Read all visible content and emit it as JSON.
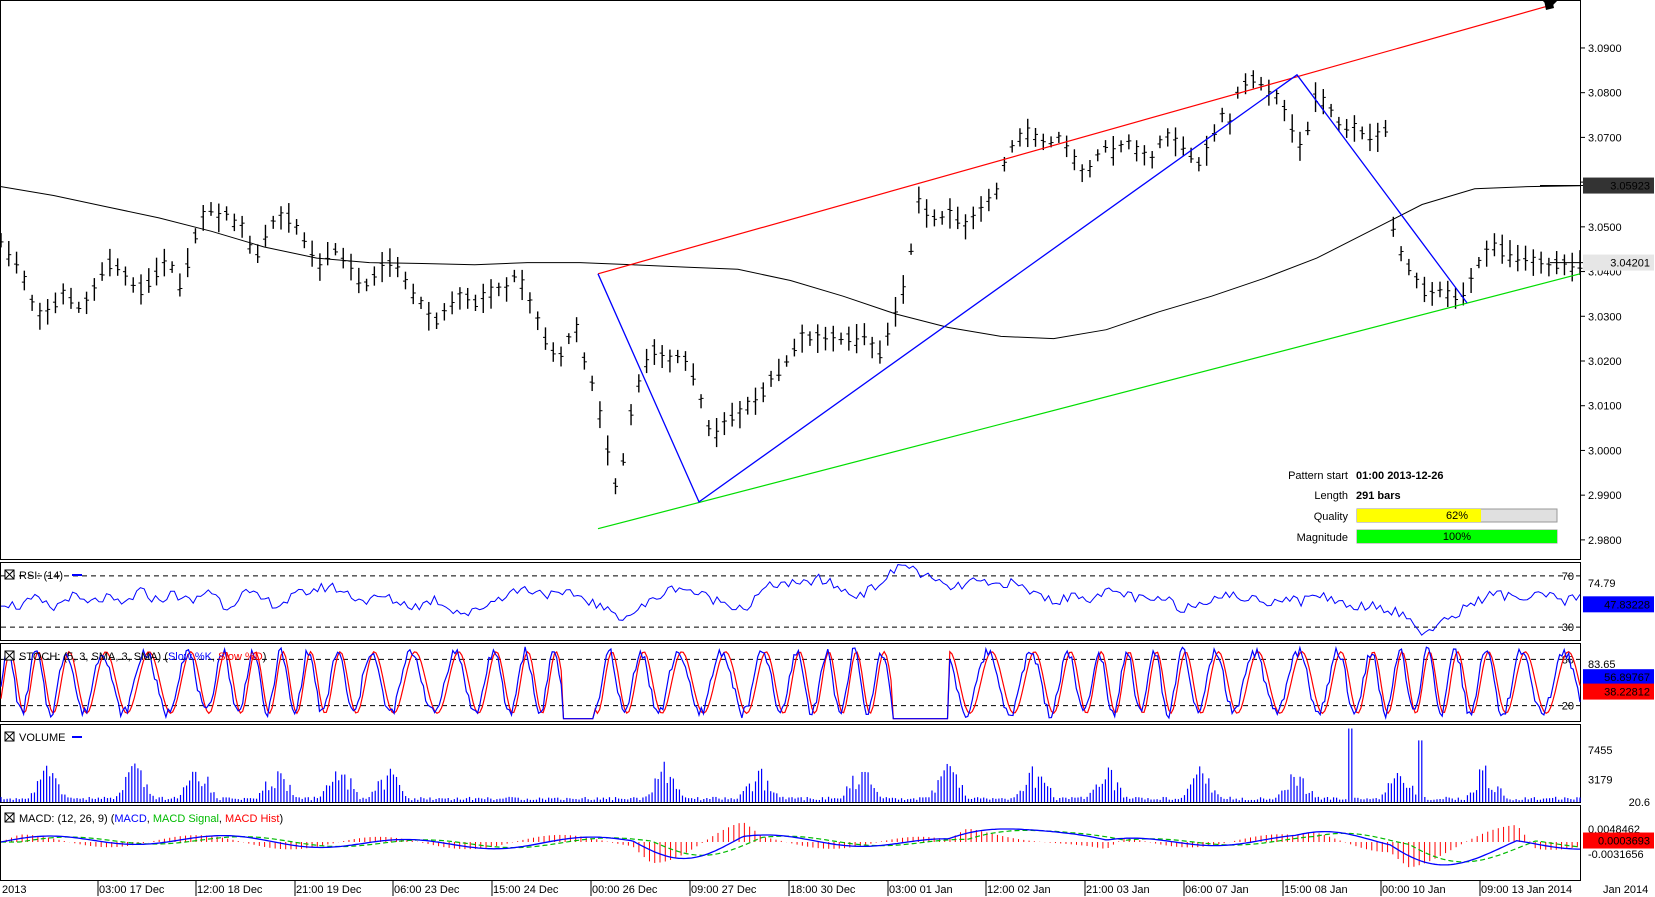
{
  "chart_data": {
    "type": "line",
    "main": {
      "y_ticks": [
        "3.0900",
        "3.0800",
        "3.0700",
        "3.0600",
        "3.0500",
        "3.0400",
        "3.0300",
        "3.0200",
        "3.0100",
        "3.0000",
        "2.9900",
        "2.9800"
      ],
      "ylim": [
        2.9755,
        3.1005
      ],
      "ma_label": "3.05923",
      "price_label": "3.04201",
      "ma_value": 3.05923,
      "price_value": 3.04201,
      "price_bars": [
        3.047,
        3.044,
        3.042,
        3.038,
        3.033,
        3.03,
        3.031,
        3.033,
        3.035,
        3.034,
        3.032,
        3.033,
        3.036,
        3.04,
        3.042,
        3.041,
        3.039,
        3.037,
        3.036,
        3.038,
        3.04,
        3.042,
        3.041,
        3.037,
        3.042,
        3.048,
        3.052,
        3.054,
        3.052,
        3.053,
        3.051,
        3.05,
        3.046,
        3.044,
        3.048,
        3.051,
        3.052,
        3.052,
        3.05,
        3.047,
        3.044,
        3.041,
        3.044,
        3.045,
        3.043,
        3.041,
        3.038,
        3.037,
        3.039,
        3.041,
        3.042,
        3.041,
        3.038,
        3.035,
        3.033,
        3.03,
        3.029,
        3.031,
        3.033,
        3.034,
        3.034,
        3.033,
        3.034,
        3.035,
        3.036,
        3.036,
        3.039,
        3.037,
        3.033,
        3.029,
        3.025,
        3.022,
        3.021,
        3.025,
        3.027,
        3.02,
        3.015,
        3.008,
        3.0,
        2.992,
        2.998,
        3.008,
        3.015,
        3.02,
        3.022,
        3.021,
        3.02,
        3.021,
        3.02,
        3.017,
        3.011,
        3.005,
        3.004,
        3.006,
        3.008,
        3.008,
        3.01,
        3.011,
        3.013,
        3.016,
        3.018,
        3.02,
        3.023,
        3.025,
        3.025,
        3.025,
        3.025,
        3.025,
        3.025,
        3.025,
        3.025,
        3.026,
        3.023,
        3.022,
        3.026,
        3.031,
        3.036,
        3.045,
        3.056,
        3.053,
        3.052,
        3.052,
        3.053,
        3.052,
        3.05,
        3.052,
        3.054,
        3.056,
        3.058,
        3.064,
        3.068,
        3.07,
        3.071,
        3.07,
        3.069,
        3.069,
        3.07,
        3.068,
        3.065,
        3.062,
        3.063,
        3.066,
        3.068,
        3.067,
        3.068,
        3.069,
        3.067,
        3.066,
        3.065,
        3.069,
        3.07,
        3.069,
        3.068,
        3.066,
        3.064,
        3.067,
        3.071,
        3.075,
        3.073,
        3.08,
        3.082,
        3.083,
        3.082,
        3.08,
        3.079,
        3.076,
        3.072,
        3.068,
        3.072,
        3.079,
        3.078,
        3.076,
        3.073,
        3.072,
        3.072,
        3.071,
        3.07,
        3.07,
        3.072,
        3.05,
        3.044,
        3.041,
        3.038,
        3.036,
        3.035,
        3.036,
        3.035,
        3.034,
        3.035,
        3.038,
        3.042,
        3.044,
        3.046,
        3.045,
        3.044,
        3.043,
        3.043,
        3.042,
        3.042,
        3.041,
        3.042,
        3.0415,
        3.041,
        3.042
      ],
      "ma_line": [
        3.059,
        3.057,
        3.0545,
        3.052,
        3.049,
        3.0455,
        3.043,
        3.042,
        3.0418,
        3.0415,
        3.042,
        3.042,
        3.0415,
        3.041,
        3.0405,
        3.038,
        3.0345,
        3.0305,
        3.0275,
        3.0255,
        3.025,
        3.027,
        3.031,
        3.0345,
        3.0385,
        3.043,
        3.049,
        3.055,
        3.0585,
        3.059,
        3.0592
      ],
      "resistance_line": [
        3.0395,
        3.0995
      ],
      "support_line": [
        2.9825,
        3.0395
      ],
      "zigzag": [
        3.0395,
        2.9885,
        3.084,
        3.033
      ],
      "info": {
        "pattern_start_label": "Pattern start",
        "pattern_start_value": "01:00 2013-12-26",
        "length_label": "Length",
        "length_value": "291 bars",
        "quality_label": "Quality",
        "quality_pct": 62,
        "quality_text": "62%",
        "magnitude_label": "Magnitude",
        "magnitude_pct": 100,
        "magnitude_text": "100%"
      }
    },
    "rsi": {
      "title": "RSI: (14)",
      "top_tick": "74.79",
      "level_high": "70",
      "level_low": "30",
      "value_label": "47.83228",
      "values": [
        50,
        46,
        52,
        44,
        55,
        48,
        53,
        47,
        58,
        51,
        56,
        49,
        60,
        45,
        57,
        52,
        47,
        55,
        59,
        62,
        56,
        50,
        54,
        49,
        46,
        52,
        44,
        40,
        48,
        55,
        60,
        58,
        54,
        56,
        50,
        42,
        38,
        46,
        55,
        62,
        57,
        52,
        48,
        45,
        60,
        65,
        62,
        68,
        63,
        55,
        58,
        68,
        80,
        72,
        64,
        60,
        66,
        62,
        65,
        60,
        54,
        50,
        56,
        52,
        58,
        55,
        50,
        52,
        45,
        48,
        55,
        54,
        52,
        50,
        53,
        50,
        56,
        50,
        46,
        48,
        44,
        38,
        25,
        32,
        42,
        50,
        56,
        54,
        52,
        55,
        50,
        53
      ]
    },
    "stoch": {
      "title": "STOCH: (5, 3, SMA, 3, SMA)",
      "legend_open": "(",
      "legend_k": "Slow %K",
      "legend_d": "Slow %D",
      "legend_close": ")",
      "top_tick": "83.65",
      "level_high": "80",
      "level_low": "20",
      "k_label": "56.89767",
      "d_label": "38.22812"
    },
    "volume": {
      "title": "VOLUME",
      "ticks": [
        "7455",
        "3179"
      ],
      "value_label": "20.6"
    },
    "macd": {
      "title": "MACD: (12, 26, 9)",
      "legend_open": "(",
      "legend_macd": "MACD",
      "legend_signal": "MACD Signal",
      "legend_hist": "MACD Hist",
      "legend_close": ")",
      "tick": "0.0048462",
      "value_label": "0.0003693",
      "bottom_tick": "-0.0031656"
    },
    "x_labels": [
      "2013",
      "03:00 17 Dec",
      "12:00 18 Dec",
      "21:00 19 Dec",
      "06:00 23 Dec",
      "15:00 24 Dec",
      "00:00 26 Dec",
      "09:00 27 Dec",
      "18:00 30 Dec",
      "03:00 01 Jan",
      "12:00 02 Jan",
      "21:00 03 Jan",
      "06:00 07 Jan",
      "15:00 08 Jan",
      "00:00 10 Jan",
      "09:00 13 Jan 2014",
      "Jan 2014"
    ],
    "colors": {
      "resistance": "#ff0000",
      "support": "#00dd00",
      "zigzag": "#0000ff",
      "ma": "#000000",
      "rsi": "#0000ff",
      "stoch_k": "#0000ff",
      "stoch_d": "#ff0000",
      "volume": "#0000ff",
      "macd": "#0000ff",
      "signal": "#00bb00",
      "hist": "#ff0000",
      "quality_fill": "#ffff00",
      "magnitude_fill": "#00ff00"
    }
  }
}
